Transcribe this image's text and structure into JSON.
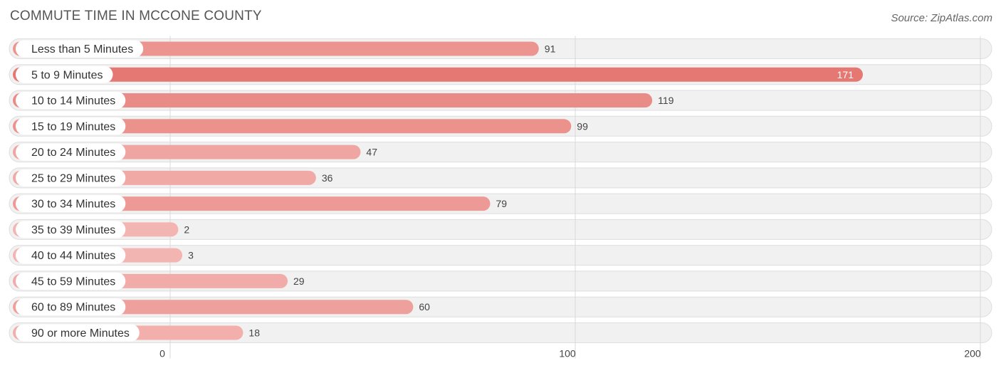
{
  "chart_data": {
    "type": "bar",
    "orientation": "horizontal",
    "title": "COMMUTE TIME IN MCCONE COUNTY",
    "source": "Source: ZipAtlas.com",
    "categories": [
      "Less than 5 Minutes",
      "5 to 9 Minutes",
      "10 to 14 Minutes",
      "15 to 19 Minutes",
      "20 to 24 Minutes",
      "25 to 29 Minutes",
      "30 to 34 Minutes",
      "35 to 39 Minutes",
      "40 to 44 Minutes",
      "45 to 59 Minutes",
      "60 to 89 Minutes",
      "90 or more Minutes"
    ],
    "values": [
      91,
      171,
      119,
      99,
      47,
      36,
      79,
      2,
      3,
      29,
      60,
      18
    ],
    "xlim": [
      0,
      200
    ],
    "xticks": [
      0,
      100,
      200
    ],
    "grid": true,
    "colors": {
      "bar_max": "#e57872",
      "bar_min": "#f3b5b2"
    }
  }
}
